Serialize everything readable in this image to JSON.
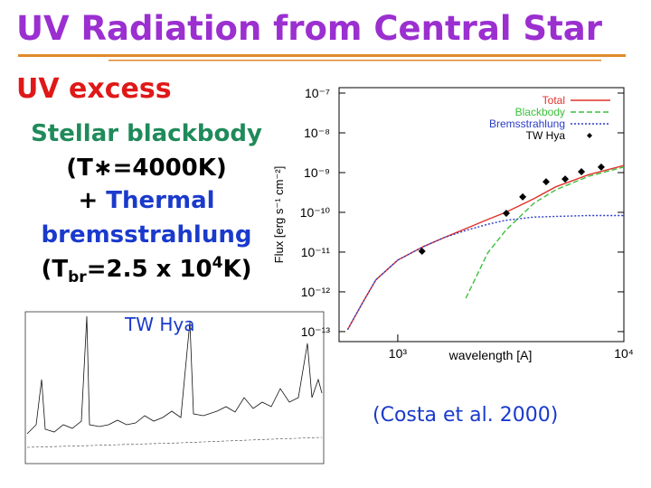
{
  "title": "UV Radiation from Central Star",
  "heading": "UV excess",
  "description": {
    "line1": "Stellar blackbody",
    "line2": "(T∗=4000K)",
    "line3": {
      "plus": "+",
      "word": "Thermal"
    },
    "line4": "bremsstrahlung",
    "line5": [
      "(T",
      "br",
      "=2.5 x 10",
      "4",
      "K)"
    ]
  },
  "inset_label": "TW Hya",
  "citation": "(Costa et al. 2000)",
  "chart_data": {
    "type": "line",
    "xlabel": "wavelength [A]",
    "ylabel": "Flux [erg s⁻¹ cm⁻²]",
    "xscale": "log",
    "yscale": "log",
    "xlim": [
      550,
      10000
    ],
    "ylim": [
      5.6e-14,
      1.37e-07
    ],
    "xticks": [
      {
        "value": 1000,
        "label": "10³"
      },
      {
        "value": 10000,
        "label": "10⁴"
      }
    ],
    "yticks": [
      {
        "value": 1e-07,
        "label": "10⁻⁷"
      },
      {
        "value": 1e-08,
        "label": "10⁻⁸"
      },
      {
        "value": 1e-09,
        "label": "10⁻⁹"
      },
      {
        "value": 1e-10,
        "label": "10⁻¹⁰"
      },
      {
        "value": 1e-11,
        "label": "10⁻¹¹"
      },
      {
        "value": 1e-12,
        "label": "10⁻¹²"
      },
      {
        "value": 1e-13,
        "label": "10⁻¹³"
      }
    ],
    "grid": false,
    "legend": "upper right",
    "x": [
      600,
      700,
      800,
      1000,
      1300,
      1600,
      2000,
      2500,
      3000,
      4000,
      5000,
      7000,
      10000
    ],
    "series": [
      {
        "name": "Total",
        "color": "#e0322a",
        "dash": "solid",
        "values": [
          1.12e-13,
          5.4e-13,
          2e-12,
          6.3e-12,
          1.38e-11,
          2.3e-11,
          3.9e-11,
          6.6e-11,
          1e-10,
          2.2e-10,
          4.4e-10,
          8.9e-10,
          1.5e-09
        ]
      },
      {
        "name": "Blackbody",
        "color": "#3cc03c",
        "dash": "dashed",
        "values": [
          null,
          null,
          null,
          null,
          null,
          null,
          6.9e-13,
          9.5e-12,
          3.5e-11,
          1.7e-10,
          3.7e-10,
          8.1e-10,
          1.38e-09
        ]
      },
      {
        "name": "Bremsstrahlung",
        "color": "#2a3cc8",
        "dash": "dotted",
        "values": [
          1.12e-13,
          5.4e-13,
          2e-12,
          6.3e-12,
          1.38e-11,
          2.3e-11,
          3.5e-11,
          5e-11,
          6.3e-11,
          7.6e-11,
          7.9e-11,
          8.3e-11,
          8.3e-11
        ]
      },
      {
        "name": "TW Hya",
        "color": "#000000",
        "marker": "diamond",
        "x": [
          1280,
          3020,
          3570,
          4530,
          5500,
          6490,
          7940
        ],
        "values": [
          1.05e-11,
          9.5e-11,
          2.45e-10,
          5.9e-10,
          6.9e-10,
          1.05e-09,
          1.38e-09
        ]
      }
    ]
  }
}
